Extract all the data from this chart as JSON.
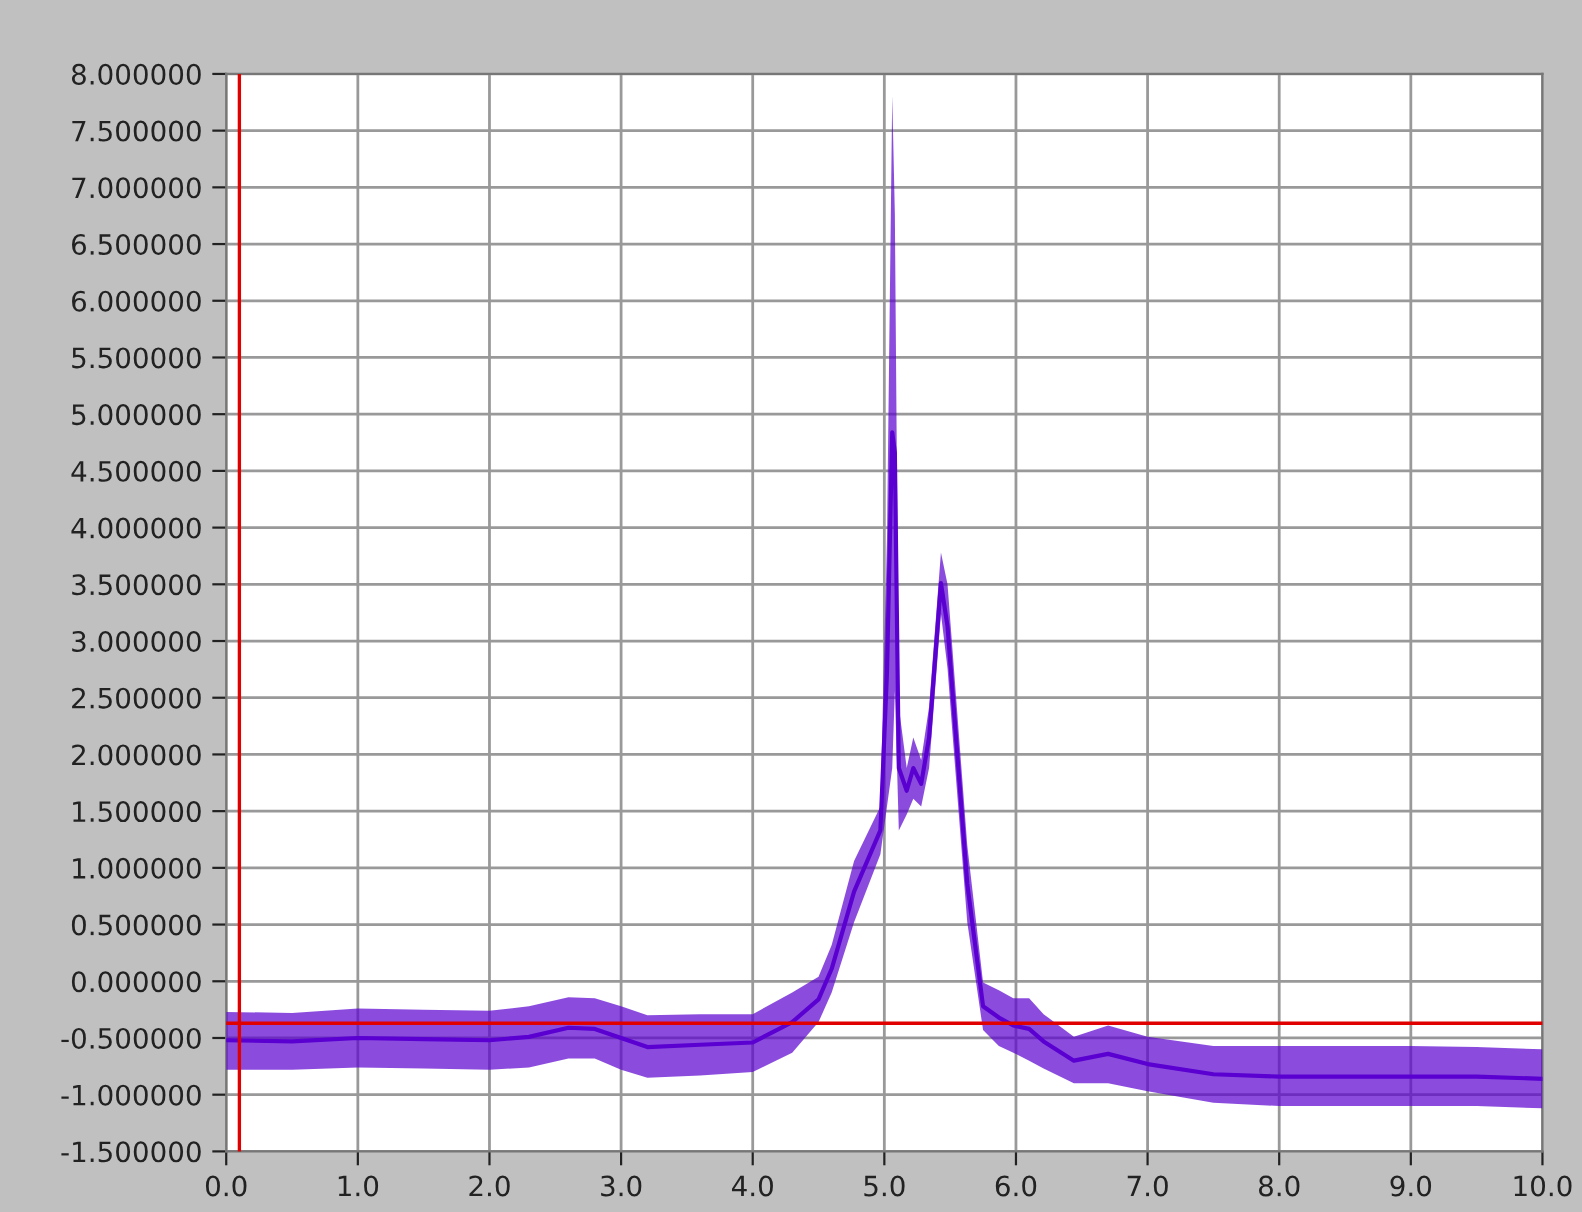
{
  "chart_data": {
    "type": "line",
    "x": [
      0,
      0.5,
      1.0,
      1.5,
      2.0,
      2.3,
      2.6,
      2.8,
      3.0,
      3.2,
      3.6,
      4.0,
      4.3,
      4.5,
      4.6,
      4.77,
      4.97,
      5.02,
      5.06,
      5.08,
      5.11,
      5.17,
      5.22,
      5.28,
      5.34,
      5.43,
      5.48,
      5.52,
      5.63,
      5.75,
      5.87,
      5.98,
      6.1,
      6.21,
      6.44,
      6.7,
      7.0,
      7.5,
      8.0,
      8.5,
      9.0,
      9.5,
      10.0
    ],
    "series": [
      {
        "color": "#5a00d0",
        "values": [
          -0.52,
          -0.53,
          -0.5,
          -0.51,
          -0.52,
          -0.49,
          -0.41,
          -0.42,
          -0.5,
          -0.58,
          -0.56,
          -0.54,
          -0.36,
          -0.16,
          0.11,
          0.79,
          1.33,
          2.72,
          4.84,
          4.66,
          1.88,
          1.68,
          1.88,
          1.74,
          2.15,
          3.51,
          3.13,
          2.52,
          0.86,
          -0.22,
          -0.32,
          -0.39,
          -0.42,
          -0.53,
          -0.7,
          -0.64,
          -0.73,
          -0.82,
          -0.84,
          -0.84,
          -0.84,
          -0.84,
          -0.86
        ],
        "upper": [
          -0.27,
          -0.28,
          -0.24,
          -0.25,
          -0.26,
          -0.22,
          -0.14,
          -0.15,
          -0.22,
          -0.3,
          -0.29,
          -0.29,
          -0.1,
          0.04,
          0.32,
          1.06,
          1.54,
          3.9,
          7.81,
          6.76,
          2.42,
          1.88,
          2.15,
          1.95,
          2.42,
          3.78,
          3.5,
          2.89,
          1.2,
          -0.01,
          -0.08,
          -0.15,
          -0.15,
          -0.29,
          -0.49,
          -0.39,
          -0.49,
          -0.57,
          -0.57,
          -0.57,
          -0.57,
          -0.58,
          -0.6
        ],
        "lower": [
          -0.78,
          -0.78,
          -0.76,
          -0.77,
          -0.78,
          -0.76,
          -0.68,
          -0.68,
          -0.78,
          -0.85,
          -0.83,
          -0.8,
          -0.63,
          -0.36,
          -0.1,
          0.52,
          1.12,
          1.54,
          1.88,
          2.56,
          1.33,
          1.47,
          1.61,
          1.54,
          1.88,
          3.24,
          2.76,
          2.15,
          0.52,
          -0.43,
          -0.57,
          -0.63,
          -0.7,
          -0.77,
          -0.9,
          -0.9,
          -0.97,
          -1.07,
          -1.1,
          -1.1,
          -1.1,
          -1.1,
          -1.12
        ]
      }
    ],
    "xlim": [
      0,
      10
    ],
    "xticks": [
      {
        "value": 0,
        "label": "0.0"
      },
      {
        "value": 1,
        "label": "1.0"
      },
      {
        "value": 2,
        "label": "2.0"
      },
      {
        "value": 3,
        "label": "3.0"
      },
      {
        "value": 4,
        "label": "4.0"
      },
      {
        "value": 5,
        "label": "5.0"
      },
      {
        "value": 6,
        "label": "6.0"
      },
      {
        "value": 7,
        "label": "7.0"
      },
      {
        "value": 8,
        "label": "8.0"
      },
      {
        "value": 9,
        "label": "9.0"
      },
      {
        "value": 10,
        "label": "10.0"
      }
    ],
    "ylim": [
      -1.5,
      8
    ],
    "yticks": [
      {
        "value": -1.5,
        "label": "-1.500000"
      },
      {
        "value": -1,
        "label": "-1.000000"
      },
      {
        "value": -0.5,
        "label": "-0.500000"
      },
      {
        "value": 0,
        "label": "0.000000"
      },
      {
        "value": 0.5,
        "label": "0.500000"
      },
      {
        "value": 1,
        "label": "1.000000"
      },
      {
        "value": 1.5,
        "label": "1.500000"
      },
      {
        "value": 2,
        "label": "2.000000"
      },
      {
        "value": 2.5,
        "label": "2.500000"
      },
      {
        "value": 3,
        "label": "3.000000"
      },
      {
        "value": 3.5,
        "label": "3.500000"
      },
      {
        "value": 4,
        "label": "4.000000"
      },
      {
        "value": 4.5,
        "label": "4.500000"
      },
      {
        "value": 5,
        "label": "5.000000"
      },
      {
        "value": 5.5,
        "label": "5.500000"
      },
      {
        "value": 6,
        "label": "6.000000"
      },
      {
        "value": 6.5,
        "label": "6.500000"
      },
      {
        "value": 7,
        "label": "7.000000"
      },
      {
        "value": 7.5,
        "label": "7.500000"
      },
      {
        "value": 8,
        "label": "8.000000"
      }
    ],
    "ref_lines": [
      {
        "axis": "x",
        "value": 0.1,
        "color": "#e00000"
      },
      {
        "axis": "y",
        "value": -0.37,
        "color": "#e00000"
      }
    ],
    "grid": true
  }
}
